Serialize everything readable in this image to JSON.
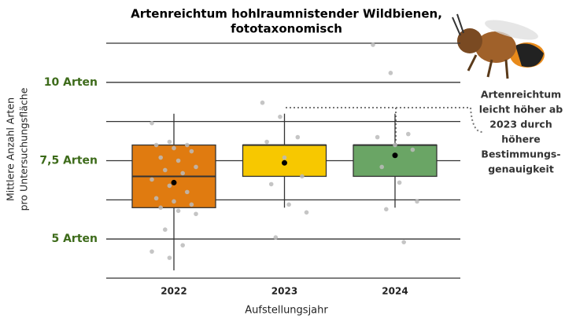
{
  "chart_data": {
    "type": "box",
    "title": [
      "Artenreichtum hohlraumnistender Wildbienen,",
      "fototaxonomisch"
    ],
    "x_label": "Aufstellungsjahr",
    "y_label": [
      "Mittlere Anzahl Arten",
      "pro Untersuchungsfläche"
    ],
    "categories": [
      "2022",
      "2023",
      "2024"
    ],
    "ylim": [
      3.5,
      11.5
    ],
    "yticks": [
      {
        "value": 5,
        "label": "5 Arten"
      },
      {
        "value": 7.5,
        "label": "7,5 Arten"
      },
      {
        "value": 10,
        "label": "10 Arten"
      }
    ],
    "grid_lines": [
      3.75,
      6.25,
      8.75,
      11.25
    ],
    "boxes": [
      {
        "color": "#e07b10",
        "whisker_low": 4.0,
        "q1": 6.0,
        "median": 7.0,
        "q3": 8.0,
        "whisker_high": 9.0,
        "mean": 6.8,
        "points": [
          8.7,
          8.1,
          8.0,
          8.0,
          7.9,
          7.8,
          7.6,
          7.5,
          7.3,
          7.2,
          7.1,
          6.9,
          6.7,
          6.5,
          6.3,
          6.2,
          6.1,
          6.0,
          5.9,
          5.8,
          5.3,
          4.8,
          4.6,
          4.4
        ]
      },
      {
        "color": "#f7c800",
        "whisker_low": 6.0,
        "q1": 7.0,
        "median": 8.0,
        "q3": 8.0,
        "whisker_high": 9.0,
        "mean": 7.43,
        "points": [
          9.35,
          8.9,
          8.25,
          8.1,
          7.6,
          7.0,
          6.75,
          6.1,
          5.85,
          5.05
        ]
      },
      {
        "color": "#6aa565",
        "whisker_low": 6.0,
        "q1": 7.0,
        "median": 8.0,
        "q3": 8.0,
        "whisker_high": 9.0,
        "mean": 7.67,
        "points": [
          11.2,
          10.3,
          8.35,
          8.25,
          8.0,
          7.85,
          7.3,
          6.8,
          6.2,
          5.95,
          4.9
        ]
      }
    ],
    "annotation": [
      "Artenreichtum",
      "leicht höher ab",
      "2023 durch",
      "höhere",
      "Bestimmungs-",
      "genauigkeit"
    ]
  }
}
